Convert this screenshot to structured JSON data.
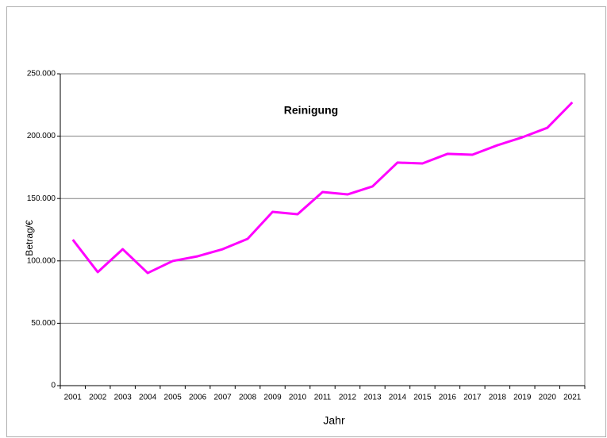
{
  "chart_data": {
    "type": "line",
    "title": "Reinigung",
    "x_label": "Jahr",
    "y_label": "Betrag/€",
    "categories": [
      "2001",
      "2002",
      "2003",
      "2004",
      "2005",
      "2006",
      "2007",
      "2008",
      "2009",
      "2010",
      "2011",
      "2012",
      "2013",
      "2014",
      "2015",
      "2016",
      "2017",
      "2018",
      "2019",
      "2020",
      "2021"
    ],
    "series": [
      {
        "name": "Reinigung",
        "color": "#ff00ff",
        "values": [
          117000,
          91000,
          109400,
          90300,
          99900,
          103700,
          109400,
          117700,
          139300,
          137400,
          155200,
          153300,
          159700,
          178800,
          178100,
          185800,
          185100,
          192700,
          199100,
          206700,
          227100
        ]
      }
    ],
    "ylim": [
      0,
      250000
    ],
    "yticks": [
      0,
      {
        "value": 50000,
        "label": "50.000"
      },
      {
        "value": 100000,
        "label": "100.000"
      },
      {
        "value": 150000,
        "label": "150.000"
      },
      {
        "value": 200000,
        "label": "200.000"
      },
      {
        "value": 250000,
        "label": "250.000"
      }
    ],
    "grid": true
  }
}
